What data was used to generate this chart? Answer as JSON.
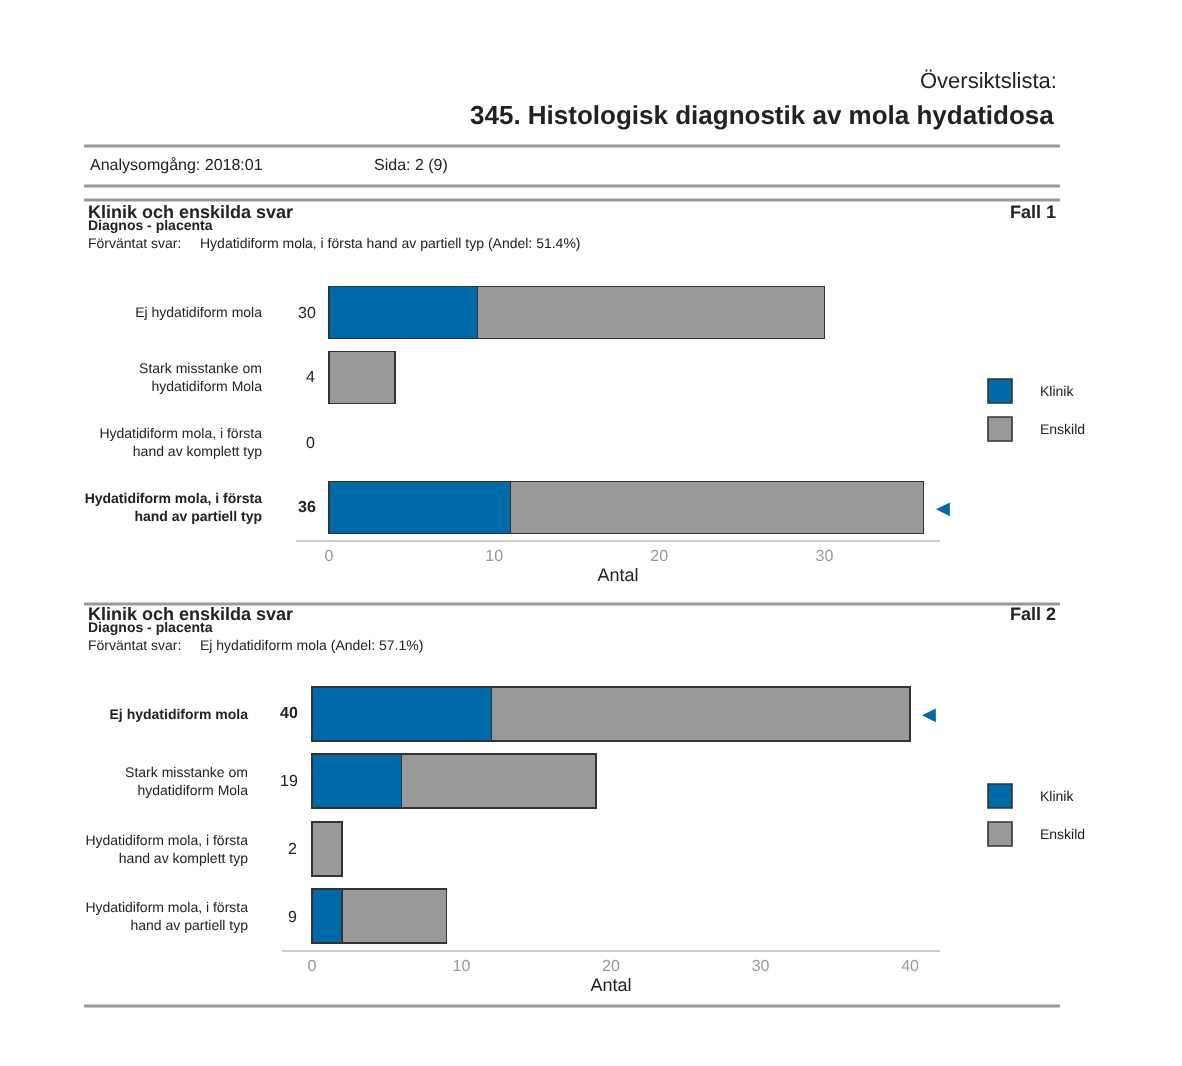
{
  "chart_data": [
    {
      "type": "bar",
      "orientation": "horizontal",
      "stacked": true,
      "title": "Klinik och enskilda svar",
      "subtitle": "Diagnos - placenta",
      "xlabel": "Antal",
      "categories": [
        "Ej hydatidiform mola",
        "Stark misstanke om hydatidiform Mola",
        "Hydatidiform mola, i första hand av komplett typ",
        "Hydatidiform mola, i första hand av partiell typ"
      ],
      "series": [
        {
          "name": "Klinik",
          "color": "#0069aa",
          "values": [
            9,
            0,
            0,
            11
          ]
        },
        {
          "name": "Enskild",
          "color": "#999999",
          "values": [
            21,
            4,
            0,
            25
          ]
        }
      ],
      "totals": [
        "30",
        "4",
        "0",
        "36"
      ],
      "xlim": [
        -2,
        37
      ],
      "xticks": [
        0,
        10,
        20,
        30
      ],
      "legend": "right",
      "annotations": [
        "Översiktslista:",
        "345. Histologisk diagnostik av mola hydatidosa",
        "Analysomgång: 2018:01",
        "Sida: 2 (9)",
        "Fall 1",
        "Förväntat svar:",
        "Hydatidiform mola, i första hand av partiell typ (Andel: 51.4%)",
        {
          "text": "◀",
          "x": 36,
          "y": "Hydatidiform mola, i första hand av partiell typ"
        }
      ]
    },
    {
      "type": "bar",
      "orientation": "horizontal",
      "stacked": true,
      "title": "Klinik och enskilda svar",
      "subtitle": "Diagnos - placenta",
      "xlabel": "Antal",
      "categories": [
        "Ej hydatidiform mola",
        "Stark misstanke om hydatidiform Mola",
        "Hydatidiform mola, i första hand av komplett typ",
        "Hydatidiform mola, i första hand av partiell typ"
      ],
      "series": [
        {
          "name": "Klinik",
          "color": "#0069aa",
          "values": [
            12,
            6,
            0,
            2
          ]
        },
        {
          "name": "Enskild",
          "color": "#999999",
          "values": [
            28,
            13,
            2,
            7
          ]
        }
      ],
      "totals": [
        "40",
        "19",
        "2",
        "9"
      ],
      "xlim": [
        -2,
        42
      ],
      "xticks": [
        0,
        10,
        20,
        30,
        40
      ],
      "legend": "right",
      "annotations": [
        "Fall 2",
        "Förväntat svar:",
        "Ej hydatidiform mola (Andel: 57.1%)",
        {
          "text": "◀",
          "x": 40,
          "y": "Ej hydatidiform mola"
        }
      ]
    }
  ]
}
